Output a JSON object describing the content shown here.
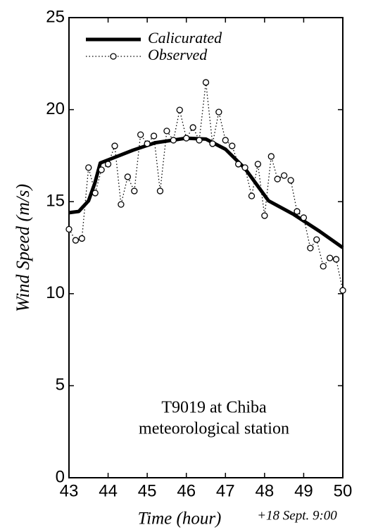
{
  "chart_data": {
    "type": "line",
    "xlabel": "Time (hour)",
    "xnote": "+18 Sept. 9:00",
    "ylabel": "Wind Speed (m/s)",
    "annotation": [
      "T9019 at Chiba",
      "meteorological station"
    ],
    "xlim": [
      43,
      50
    ],
    "xticks": [
      43,
      44,
      45,
      46,
      47,
      48,
      49,
      50
    ],
    "ylim": [
      0,
      25
    ],
    "yticks": [
      0,
      5,
      10,
      15,
      20,
      25
    ],
    "legend": "upper-left",
    "series": [
      {
        "name": "Calicurated",
        "color": "#000000",
        "style": "solid",
        "x": [
          43,
          43.25,
          43.5,
          43.66,
          43.8,
          44.1,
          44.64,
          45.2,
          46,
          46.5,
          47,
          47.5,
          48.1,
          48.75,
          49.4,
          50
        ],
        "values": [
          14.4,
          14.47,
          15.05,
          16,
          17.1,
          17.35,
          17.8,
          18.2,
          18.45,
          18.4,
          17.85,
          16.8,
          15.05,
          14.3,
          13.4,
          12.5
        ]
      },
      {
        "name": "Observed",
        "color": "#000000",
        "style": "dotted-circles",
        "x": [
          43,
          43.17,
          43.33,
          43.5,
          43.67,
          43.83,
          44,
          44.17,
          44.33,
          44.5,
          44.67,
          44.83,
          45,
          45.17,
          45.33,
          45.5,
          45.67,
          45.83,
          46,
          46.17,
          46.33,
          46.5,
          46.67,
          46.83,
          47,
          47.17,
          47.33,
          47.5,
          47.67,
          47.83,
          48,
          48.17,
          48.33,
          48.5,
          48.67,
          48.83,
          49,
          49.17,
          49.33,
          49.5,
          49.67,
          49.83,
          50
        ],
        "values": [
          13.5,
          12.9,
          13.0,
          16.85,
          15.47,
          16.73,
          17.04,
          18.03,
          14.85,
          16.35,
          15.58,
          18.64,
          18.15,
          18.57,
          15.58,
          18.84,
          18.34,
          19.98,
          18.45,
          19.03,
          18.34,
          21.48,
          18.15,
          19.87,
          18.34,
          18.03,
          17.04,
          16.85,
          15.31,
          17.04,
          14.24,
          17.46,
          16.23,
          16.42,
          16.16,
          14.47,
          14.13,
          12.48,
          12.94,
          11.49,
          11.94,
          11.87,
          10.18
        ]
      }
    ]
  }
}
